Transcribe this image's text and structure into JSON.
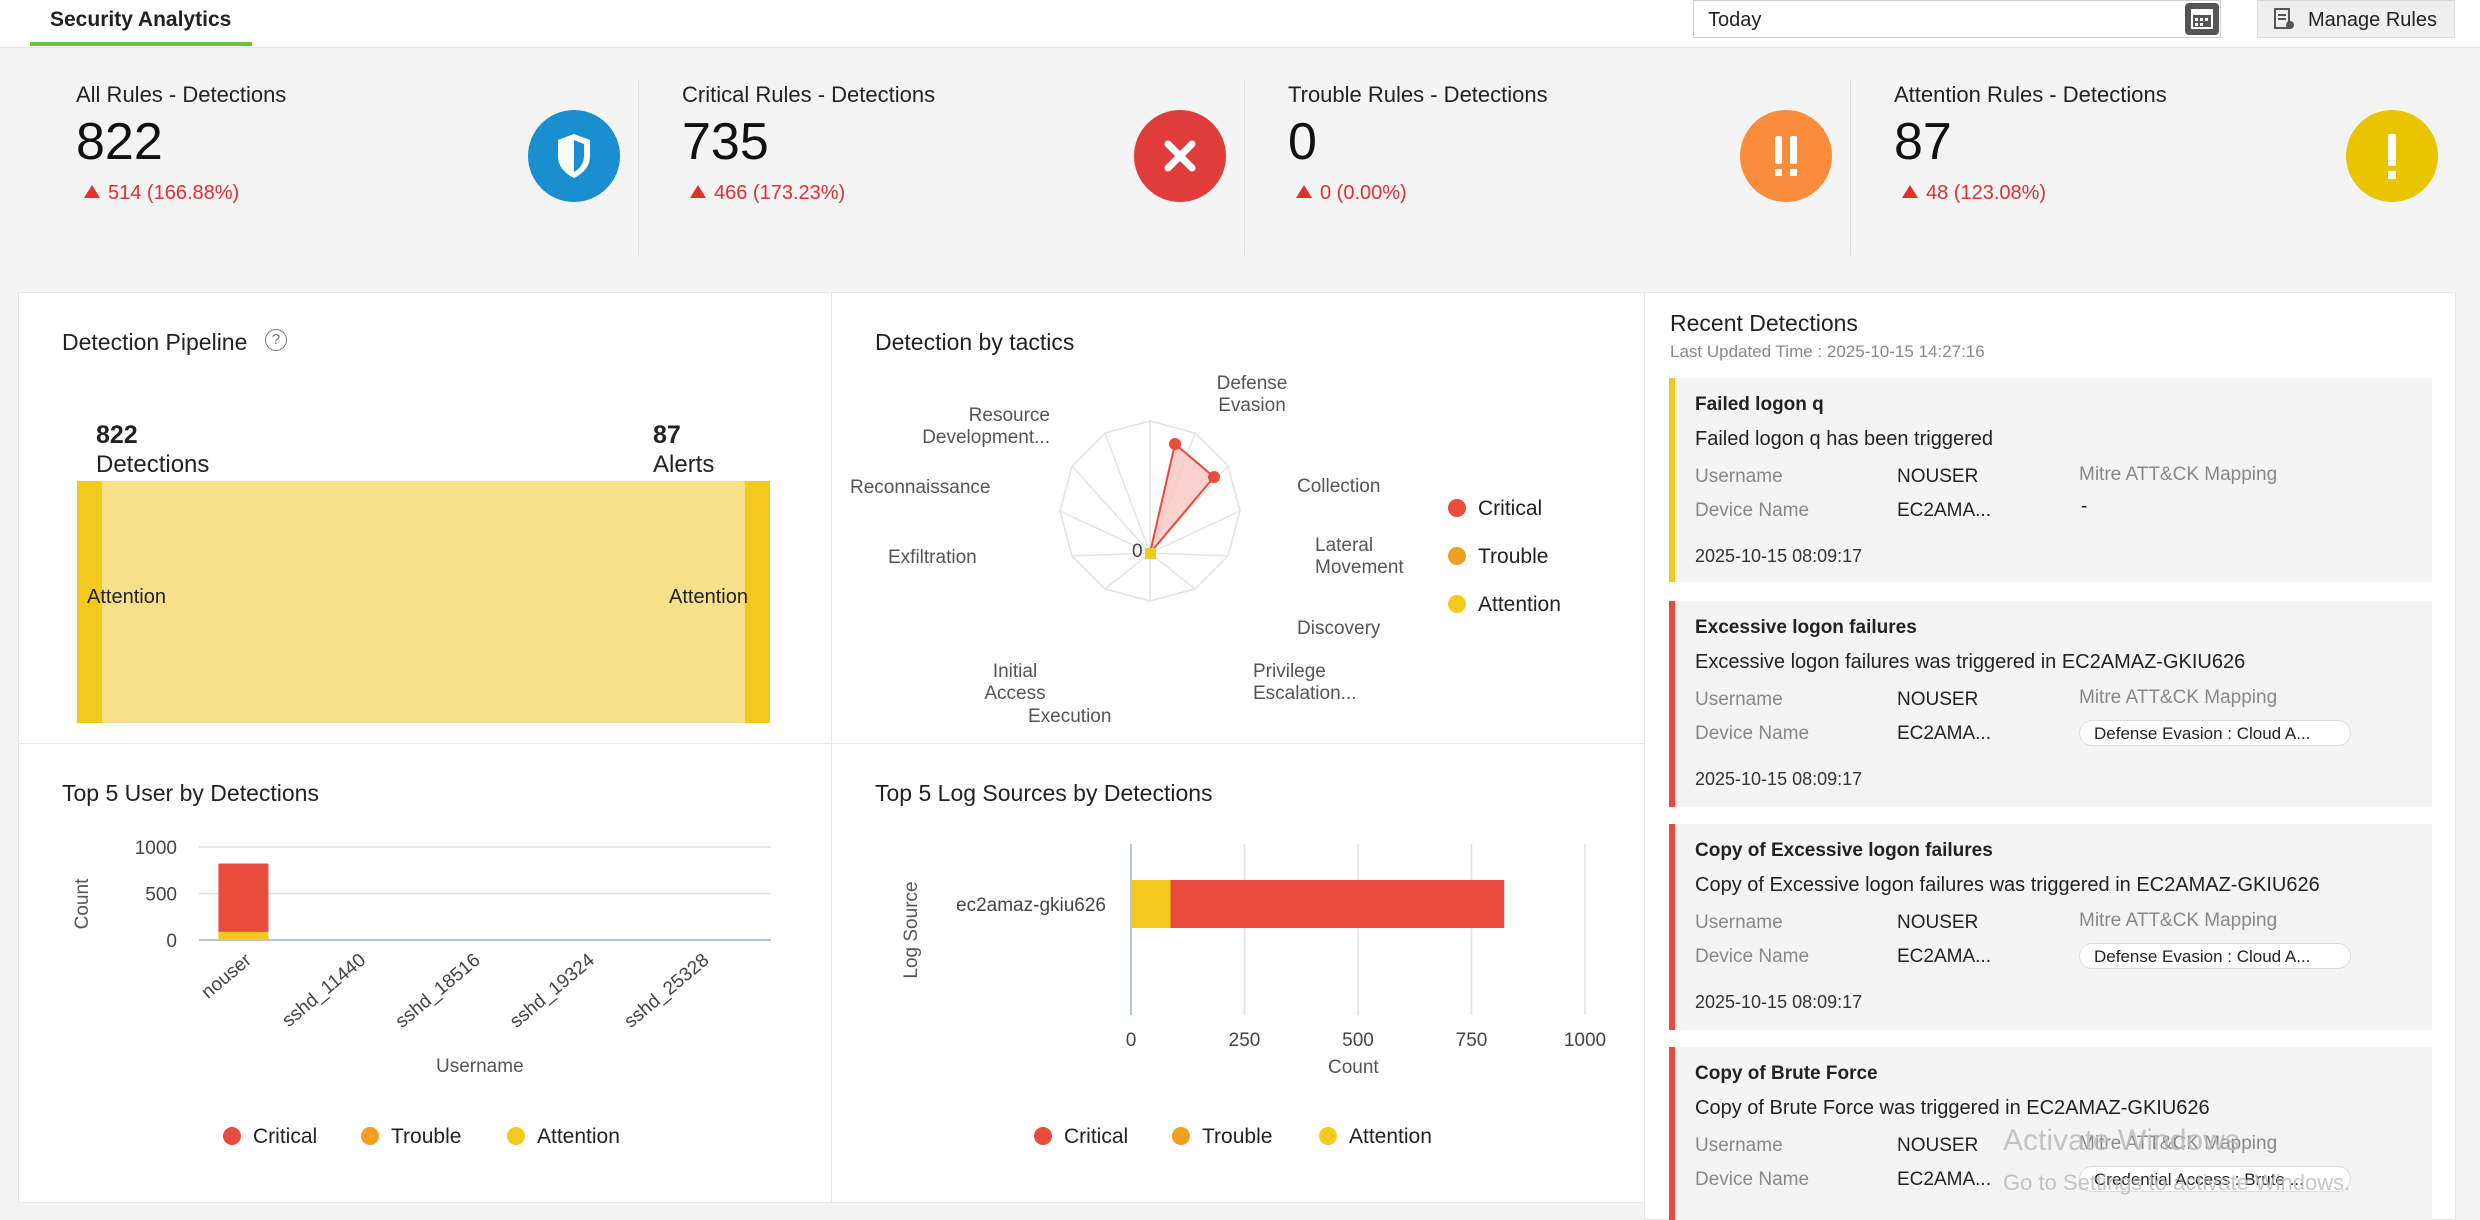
{
  "header": {
    "tab_label": "Security Analytics",
    "date_range": "Today",
    "manage_rules_label": "Manage Rules"
  },
  "kpis": [
    {
      "title": "All Rules - Detections",
      "value": "822",
      "delta": "514 (166.88%)",
      "badge_color": "#1a8fd0",
      "icon": "shield-icon"
    },
    {
      "title": "Critical Rules - Detections",
      "value": "735",
      "delta": "466 (173.23%)",
      "badge_color": "#e03c3c",
      "icon": "close-icon"
    },
    {
      "title": "Trouble Rules - Detections",
      "value": "0",
      "delta": "0 (0.00%)",
      "badge_color": "#fb8c3c",
      "icon": "double-exclamation-icon"
    },
    {
      "title": "Attention Rules - Detections",
      "value": "87",
      "delta": "48 (123.08%)",
      "badge_color": "#e8c500",
      "icon": "exclamation-icon"
    }
  ],
  "pipeline": {
    "title": "Detection Pipeline",
    "left_count": "822",
    "left_label": "Detections",
    "right_count": "87",
    "right_label": "Alerts",
    "left_node": "Attention",
    "right_node": "Attention"
  },
  "tactics": {
    "title": "Detection by tactics",
    "labels": [
      "Defense Evasion",
      "Collection",
      "Lateral Movement",
      "Discovery",
      "Privilege Escalation...",
      "Execution",
      "Initial Access",
      "Exfiltration",
      "Reconnaissance",
      "Resource Development..."
    ],
    "center_label": "0",
    "legend": [
      "Critical",
      "Trouble",
      "Attention"
    ]
  },
  "top_users": {
    "title": "Top 5 User by Detections",
    "ylabel": "Count",
    "xlabel": "Username",
    "legend": [
      "Critical",
      "Trouble",
      "Attention"
    ]
  },
  "top_sources": {
    "title": "Top 5 Log Sources by Detections",
    "ylabel": "Log Source",
    "xlabel": "Count",
    "legend": [
      "Critical",
      "Trouble",
      "Attention"
    ]
  },
  "chart_data": [
    {
      "type": "bar",
      "title": "Top 5 User by Detections",
      "xlabel": "Username",
      "ylabel": "Count",
      "ylim": [
        0,
        1000
      ],
      "yticks": [
        "1000",
        "500",
        "0"
      ],
      "categories": [
        "nouser",
        "sshd_11440",
        "sshd_18516",
        "sshd_19324",
        "sshd_25328"
      ],
      "series": [
        {
          "name": "Critical",
          "values": [
            735,
            0,
            0,
            0,
            0
          ]
        },
        {
          "name": "Trouble",
          "values": [
            0,
            0,
            0,
            0,
            0
          ]
        },
        {
          "name": "Attention",
          "values": [
            87,
            0,
            0,
            0,
            0
          ]
        }
      ]
    },
    {
      "type": "bar",
      "orientation": "horizontal",
      "title": "Top 5 Log Sources by Detections",
      "xlabel": "Count",
      "ylabel": "Log Source",
      "xlim": [
        0,
        1000
      ],
      "xticks": [
        "0",
        "250",
        "500",
        "750",
        "1000"
      ],
      "categories": [
        "ec2amaz-gkiu626"
      ],
      "series": [
        {
          "name": "Critical",
          "values": [
            735
          ]
        },
        {
          "name": "Trouble",
          "values": [
            0
          ]
        },
        {
          "name": "Attention",
          "values": [
            87
          ]
        }
      ]
    }
  ],
  "colors": {
    "critical": "#e84c3d",
    "trouble": "#f0a020",
    "attention": "#f2c91c",
    "attention_light": "#f6e08a",
    "accent": "#6cbf3f"
  },
  "recent": {
    "title": "Recent Detections",
    "updated": "Last Updated Time : 2025-10-15 14:27:16",
    "labels": {
      "username": "Username",
      "device": "Device Name",
      "mitre": "Mitre ATT&CK Mapping"
    },
    "cards": [
      {
        "title": "Failed logon q",
        "message": "Failed logon q has been triggered",
        "username": "NOUSER",
        "device": "EC2AMA...",
        "mitre": "-",
        "time": "2025-10-15 08:09:17",
        "severity": "attention"
      },
      {
        "title": "Excessive logon failures",
        "message": "Excessive logon failures was triggered in EC2AMAZ-GKIU626",
        "username": "NOUSER",
        "device": "EC2AMA...",
        "mitre": "Defense Evasion : Cloud A...",
        "time": "2025-10-15 08:09:17",
        "severity": "critical"
      },
      {
        "title": "Copy of Excessive logon failures",
        "message": "Copy of Excessive logon failures was triggered in EC2AMAZ-GKIU626",
        "username": "NOUSER",
        "device": "EC2AMA...",
        "mitre": "Defense Evasion : Cloud A...",
        "time": "2025-10-15 08:09:17",
        "severity": "critical"
      },
      {
        "title": "Copy of Brute Force",
        "message": "Copy of Brute Force was triggered in EC2AMAZ-GKIU626",
        "username": "NOUSER",
        "device": "EC2AMA...",
        "mitre": "Credential Access : Brute ...",
        "time": "",
        "severity": "critical"
      }
    ]
  },
  "watermark": {
    "line1": "Activate Windows",
    "line2": "Go to Settings to activate Windows."
  }
}
